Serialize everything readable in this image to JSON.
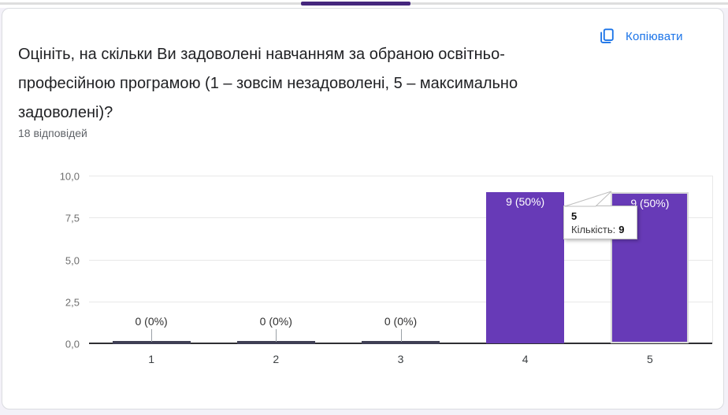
{
  "header": {
    "copy_label": "Копіювати",
    "copy_icon": "copy-icon",
    "accent_blue": "#1a73e8"
  },
  "question": {
    "title": "Оцініть, на скільки Ви задоволені навчанням за обраною  освітньо-професійною програмою (1 – зовсім незадоволені, 5 – максимально задоволені)?",
    "responses_count": "18 відповідей"
  },
  "chart_data": {
    "type": "bar",
    "categories": [
      "1",
      "2",
      "3",
      "4",
      "5"
    ],
    "values": [
      0,
      0,
      0,
      9,
      9
    ],
    "bar_labels": [
      "0 (0%)",
      "0 (0%)",
      "0 (0%)",
      "9 (50%)",
      "9 (50%)"
    ],
    "title": "",
    "xlabel": "",
    "ylabel": "",
    "ylim": [
      0,
      10
    ],
    "yticks": [
      {
        "value": 0,
        "label": "0,0"
      },
      {
        "value": 2.5,
        "label": "2,5"
      },
      {
        "value": 5,
        "label": "5,0"
      },
      {
        "value": 7.5,
        "label": "7,5"
      },
      {
        "value": 10,
        "label": "10,0"
      }
    ],
    "grid": true,
    "legend": "none",
    "bar_color": "#673ab7",
    "hovered_category_index": 4
  },
  "tooltip": {
    "title": "5",
    "count_label": "Кількість:",
    "count_value": "9"
  },
  "misc": {
    "scrollbar_color": "#45267d"
  }
}
